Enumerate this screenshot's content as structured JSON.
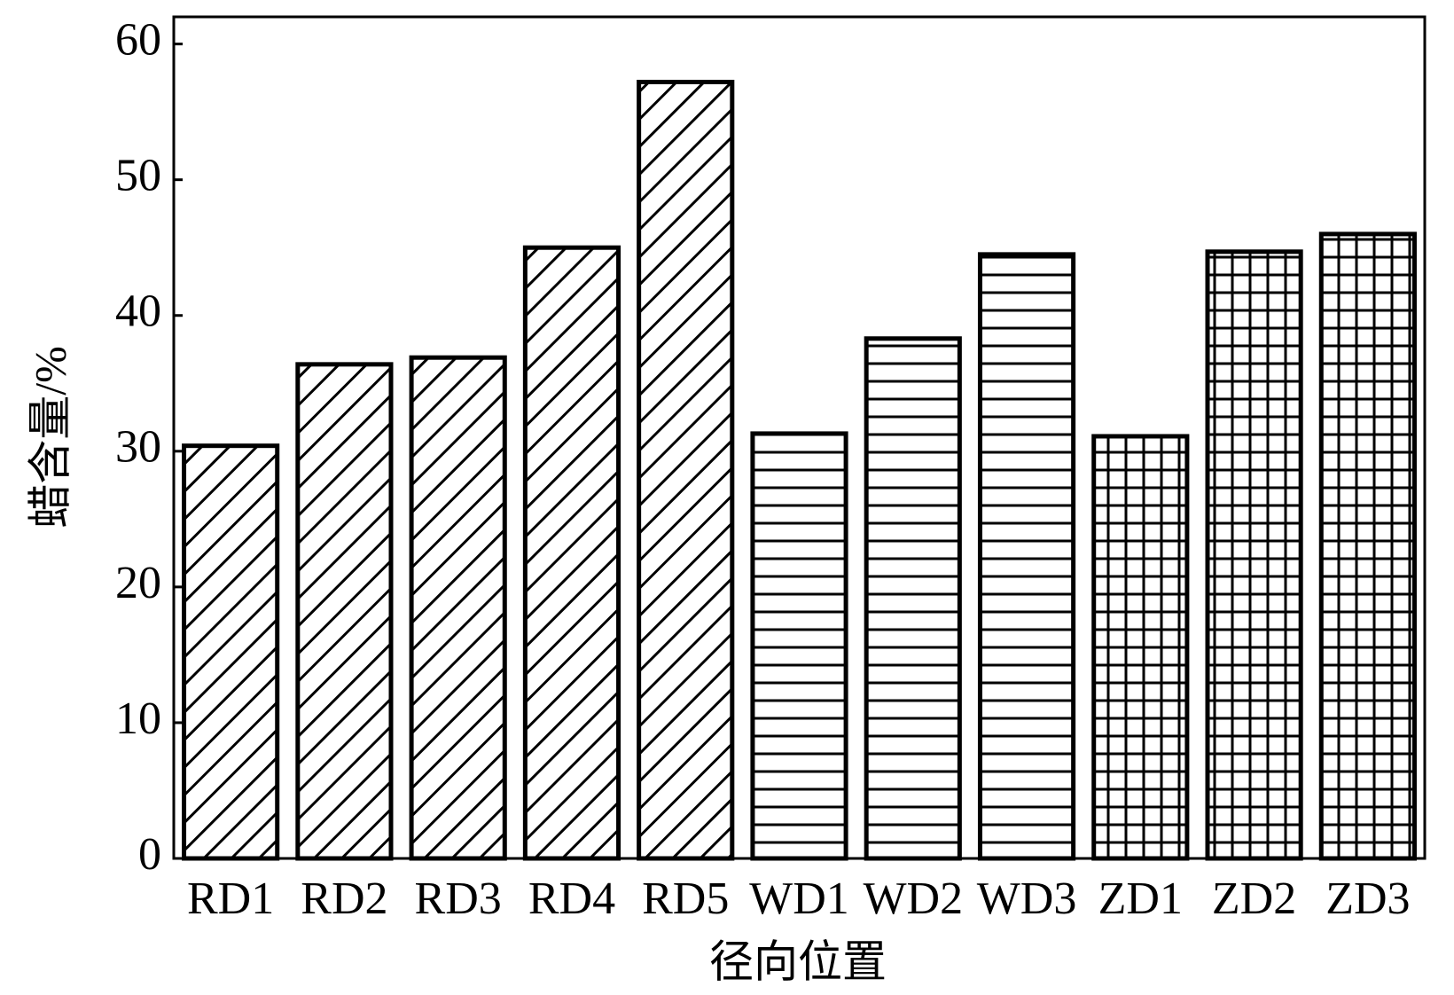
{
  "chart_data": {
    "type": "bar",
    "x_label": "径向位置",
    "y_label": "蜡含量/%",
    "categories": [
      "RD1",
      "RD2",
      "RD3",
      "RD4",
      "RD5",
      "WD1",
      "WD2",
      "WD3",
      "ZD1",
      "ZD2",
      "ZD3"
    ],
    "values": [
      30.4,
      36.4,
      36.9,
      45.0,
      57.2,
      31.3,
      38.3,
      44.5,
      31.1,
      44.7,
      46.0
    ],
    "patterns": [
      "diagonal",
      "diagonal",
      "diagonal",
      "diagonal",
      "diagonal",
      "horizontal",
      "horizontal",
      "horizontal",
      "grid",
      "grid",
      "grid"
    ],
    "color": "#000000",
    "ylim": [
      0,
      62
    ],
    "yticks": [
      0,
      10,
      20,
      30,
      40,
      50,
      60
    ],
    "grid": false
  }
}
